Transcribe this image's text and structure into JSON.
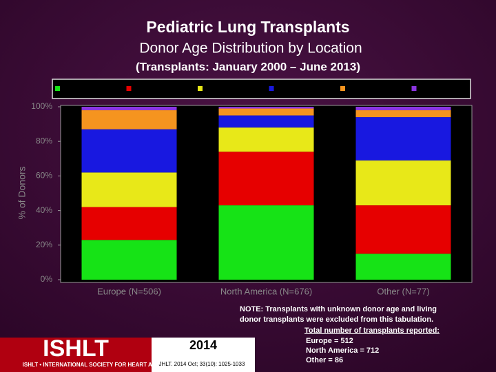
{
  "chart_data": {
    "type": "stacked_bar",
    "title": "Pediatric Lung Transplants",
    "subtitle": "Donor Age Distribution by Location",
    "period": "(Transplants: January 2000 – June 2013)",
    "y_label": "% of Donors",
    "categories": [
      "Europe (N=506)",
      "North America (N=676)",
      "Other (N=77)"
    ],
    "series": [
      {
        "color": "#16e316",
        "values": [
          23,
          43,
          15
        ]
      },
      {
        "color": "#e60000",
        "values": [
          19,
          31,
          28
        ]
      },
      {
        "color": "#e8e818",
        "values": [
          20,
          14,
          26
        ]
      },
      {
        "color": "#1818e0",
        "values": [
          25,
          7,
          25
        ]
      },
      {
        "color": "#f5941f",
        "values": [
          11,
          4,
          4
        ]
      },
      {
        "color": "#8b35e0",
        "values": [
          2,
          1,
          2
        ]
      }
    ],
    "ylim": [
      0,
      100
    ],
    "yticks": [
      {
        "value": 0,
        "label": "0%"
      },
      {
        "value": 20,
        "label": "20%"
      },
      {
        "value": 40,
        "label": "40%"
      },
      {
        "value": 60,
        "label": "60%"
      },
      {
        "value": 80,
        "label": "80%"
      },
      {
        "value": 100,
        "label": "100%"
      }
    ],
    "notes": [
      "NOTE: Transplants with unknown donor age and living",
      "donor transplants were excluded from this tabulation.",
      "Total number of transplants reported:",
      "Europe = 512",
      "North America = 712",
      "Other = 86"
    ],
    "logo": {
      "name": "ISHLT",
      "society": "ISHLT • INTERNATIONAL SOCIETY FOR HEART AND LUNG TRANSPLANTATION",
      "year": "2014",
      "citation": "JHLT. 2014 Oct; 33(10): 1025-1033"
    }
  }
}
